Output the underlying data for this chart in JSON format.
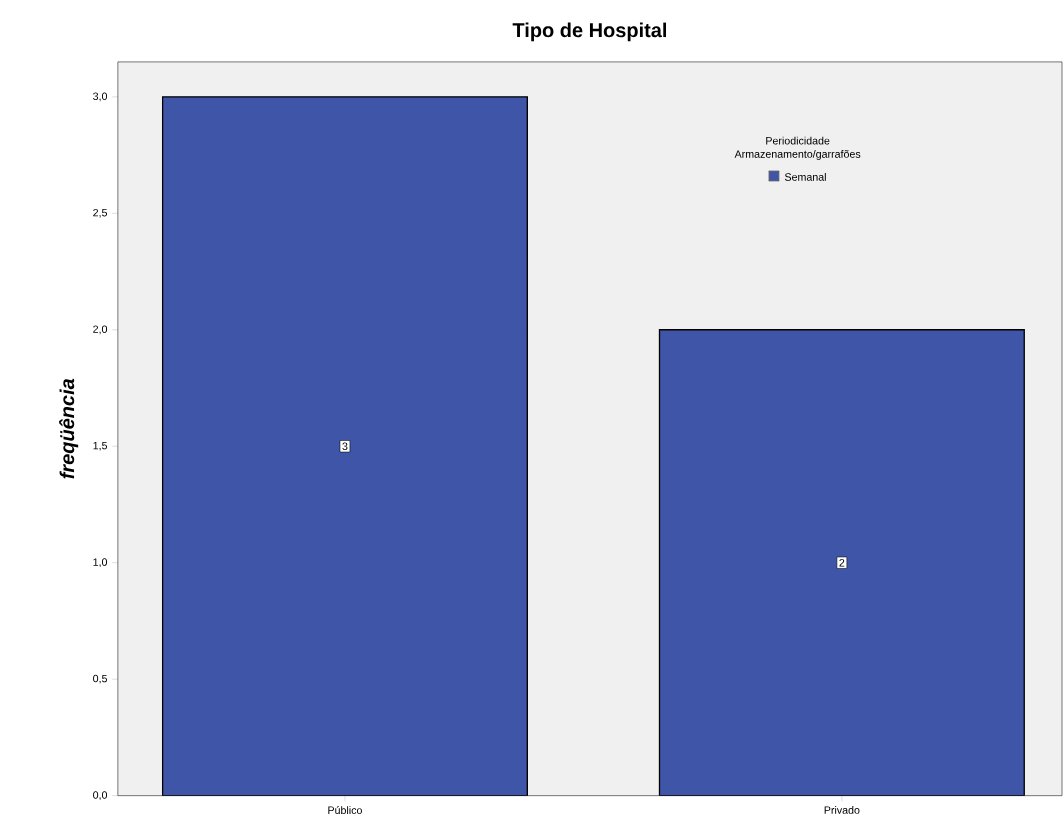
{
  "chart_data": {
    "type": "bar",
    "title": "Tipo de Hospital",
    "ylabel": "freqüência",
    "legend_title": "Periodicidade Armazenamento/garrafões",
    "categories": [
      "Público",
      "Privado"
    ],
    "series": [
      {
        "name": "Semanal",
        "color": "#3f55a8",
        "values": [
          3,
          2
        ]
      }
    ],
    "ylim": [
      0,
      3.15
    ],
    "yticks": [
      {
        "value": 0,
        "label": "0,0"
      },
      {
        "value": 0.5,
        "label": "0,5"
      },
      {
        "value": 1,
        "label": "1,0"
      },
      {
        "value": 1.5,
        "label": "1,5"
      },
      {
        "value": 2,
        "label": "2,0"
      },
      {
        "value": 2.5,
        "label": "2,5"
      },
      {
        "value": 3,
        "label": "3,0"
      }
    ],
    "data_labels": true,
    "legend": "top right",
    "grid": false
  }
}
